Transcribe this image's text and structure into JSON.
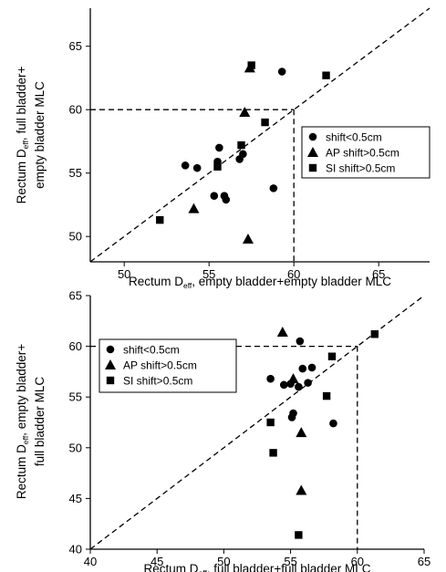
{
  "chart_data": [
    {
      "type": "scatter",
      "xlabel_parts": [
        "Rectum D",
        "eff",
        ", empty bladder+empty bladder MLC"
      ],
      "ylabel_lines": [
        [
          "Rectum D",
          "eff",
          ", full bladder+"
        ],
        [
          "empty bladder MLC"
        ]
      ],
      "xlim": [
        48,
        68
      ],
      "ylim": [
        48,
        68
      ],
      "xticks": [
        50,
        55,
        60,
        65
      ],
      "yticks": [
        50,
        55,
        60,
        65
      ],
      "legend_position": "right",
      "grid": false,
      "reference_lines": {
        "identity": true,
        "threshold": 60
      },
      "series": [
        {
          "name": "shift<0.5cm",
          "marker": "circle",
          "points": [
            [
              53.6,
              55.6
            ],
            [
              54.3,
              55.4
            ],
            [
              55.3,
              53.2
            ],
            [
              55.5,
              55.9
            ],
            [
              55.6,
              57.0
            ],
            [
              55.9,
              53.2
            ],
            [
              56.0,
              52.9
            ],
            [
              56.8,
              56.1
            ],
            [
              57.0,
              56.5
            ],
            [
              58.8,
              53.8
            ],
            [
              59.3,
              63.0
            ]
          ]
        },
        {
          "name": "AP shift>0.5cm",
          "marker": "triangle",
          "points": [
            [
              54.1,
              52.2
            ],
            [
              57.1,
              59.8
            ],
            [
              57.3,
              49.8
            ],
            [
              57.4,
              63.3
            ]
          ]
        },
        {
          "name": "SI shift>0.5cm",
          "marker": "square",
          "points": [
            [
              52.1,
              51.3
            ],
            [
              55.5,
              55.5
            ],
            [
              56.9,
              57.2
            ],
            [
              57.5,
              63.5
            ],
            [
              58.3,
              59.0
            ],
            [
              61.9,
              62.7
            ]
          ]
        }
      ]
    },
    {
      "type": "scatter",
      "xlabel_parts": [
        "Rectum D",
        "eff",
        ", full bladder+full bladder MLC"
      ],
      "ylabel_lines": [
        [
          "Rectum D",
          "eff",
          ", empty bladder+"
        ],
        [
          "full bladder MLC"
        ]
      ],
      "xlim": [
        40,
        65
      ],
      "ylim": [
        40,
        65
      ],
      "xticks": [
        40,
        45,
        50,
        55,
        60,
        65
      ],
      "yticks": [
        40,
        45,
        50,
        55,
        60,
        65
      ],
      "legend_position": "left",
      "grid": false,
      "reference_lines": {
        "identity": true,
        "threshold": 60
      },
      "series": [
        {
          "name": "shift<0.5cm",
          "marker": "circle",
          "points": [
            [
              53.5,
              56.8
            ],
            [
              54.5,
              56.2
            ],
            [
              55.0,
              56.3
            ],
            [
              55.1,
              53.0
            ],
            [
              55.2,
              53.4
            ],
            [
              55.6,
              56.0
            ],
            [
              55.7,
              60.5
            ],
            [
              55.9,
              57.8
            ],
            [
              56.3,
              56.4
            ],
            [
              56.6,
              57.9
            ],
            [
              58.2,
              52.4
            ]
          ]
        },
        {
          "name": "AP shift>0.5cm",
          "marker": "triangle",
          "points": [
            [
              54.4,
              61.4
            ],
            [
              55.2,
              56.8
            ],
            [
              55.8,
              51.5
            ],
            [
              55.8,
              45.8
            ]
          ]
        },
        {
          "name": "SI shift>0.5cm",
          "marker": "square",
          "points": [
            [
              53.5,
              52.5
            ],
            [
              53.7,
              49.5
            ],
            [
              55.6,
              41.4
            ],
            [
              57.7,
              55.1
            ],
            [
              58.1,
              59.0
            ],
            [
              61.3,
              61.2
            ]
          ]
        }
      ]
    }
  ]
}
